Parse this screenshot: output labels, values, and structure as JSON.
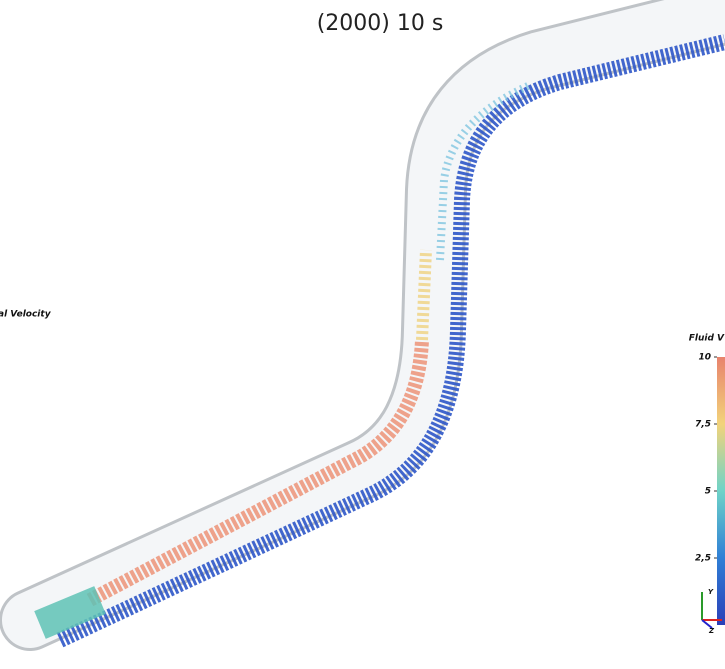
{
  "title": "(2000) 10 s",
  "left_legend": {
    "title": "al Velocity"
  },
  "colorbar": {
    "title": "Fluid V",
    "lim": [
      0,
      10
    ],
    "ticks": [
      {
        "value": 10,
        "label": "10"
      },
      {
        "value": 7.5,
        "label": "7,5"
      },
      {
        "value": 5,
        "label": "5"
      },
      {
        "value": 2.5,
        "label": "2,5"
      }
    ]
  },
  "axes": {
    "y": "Y",
    "z": "Z"
  }
}
